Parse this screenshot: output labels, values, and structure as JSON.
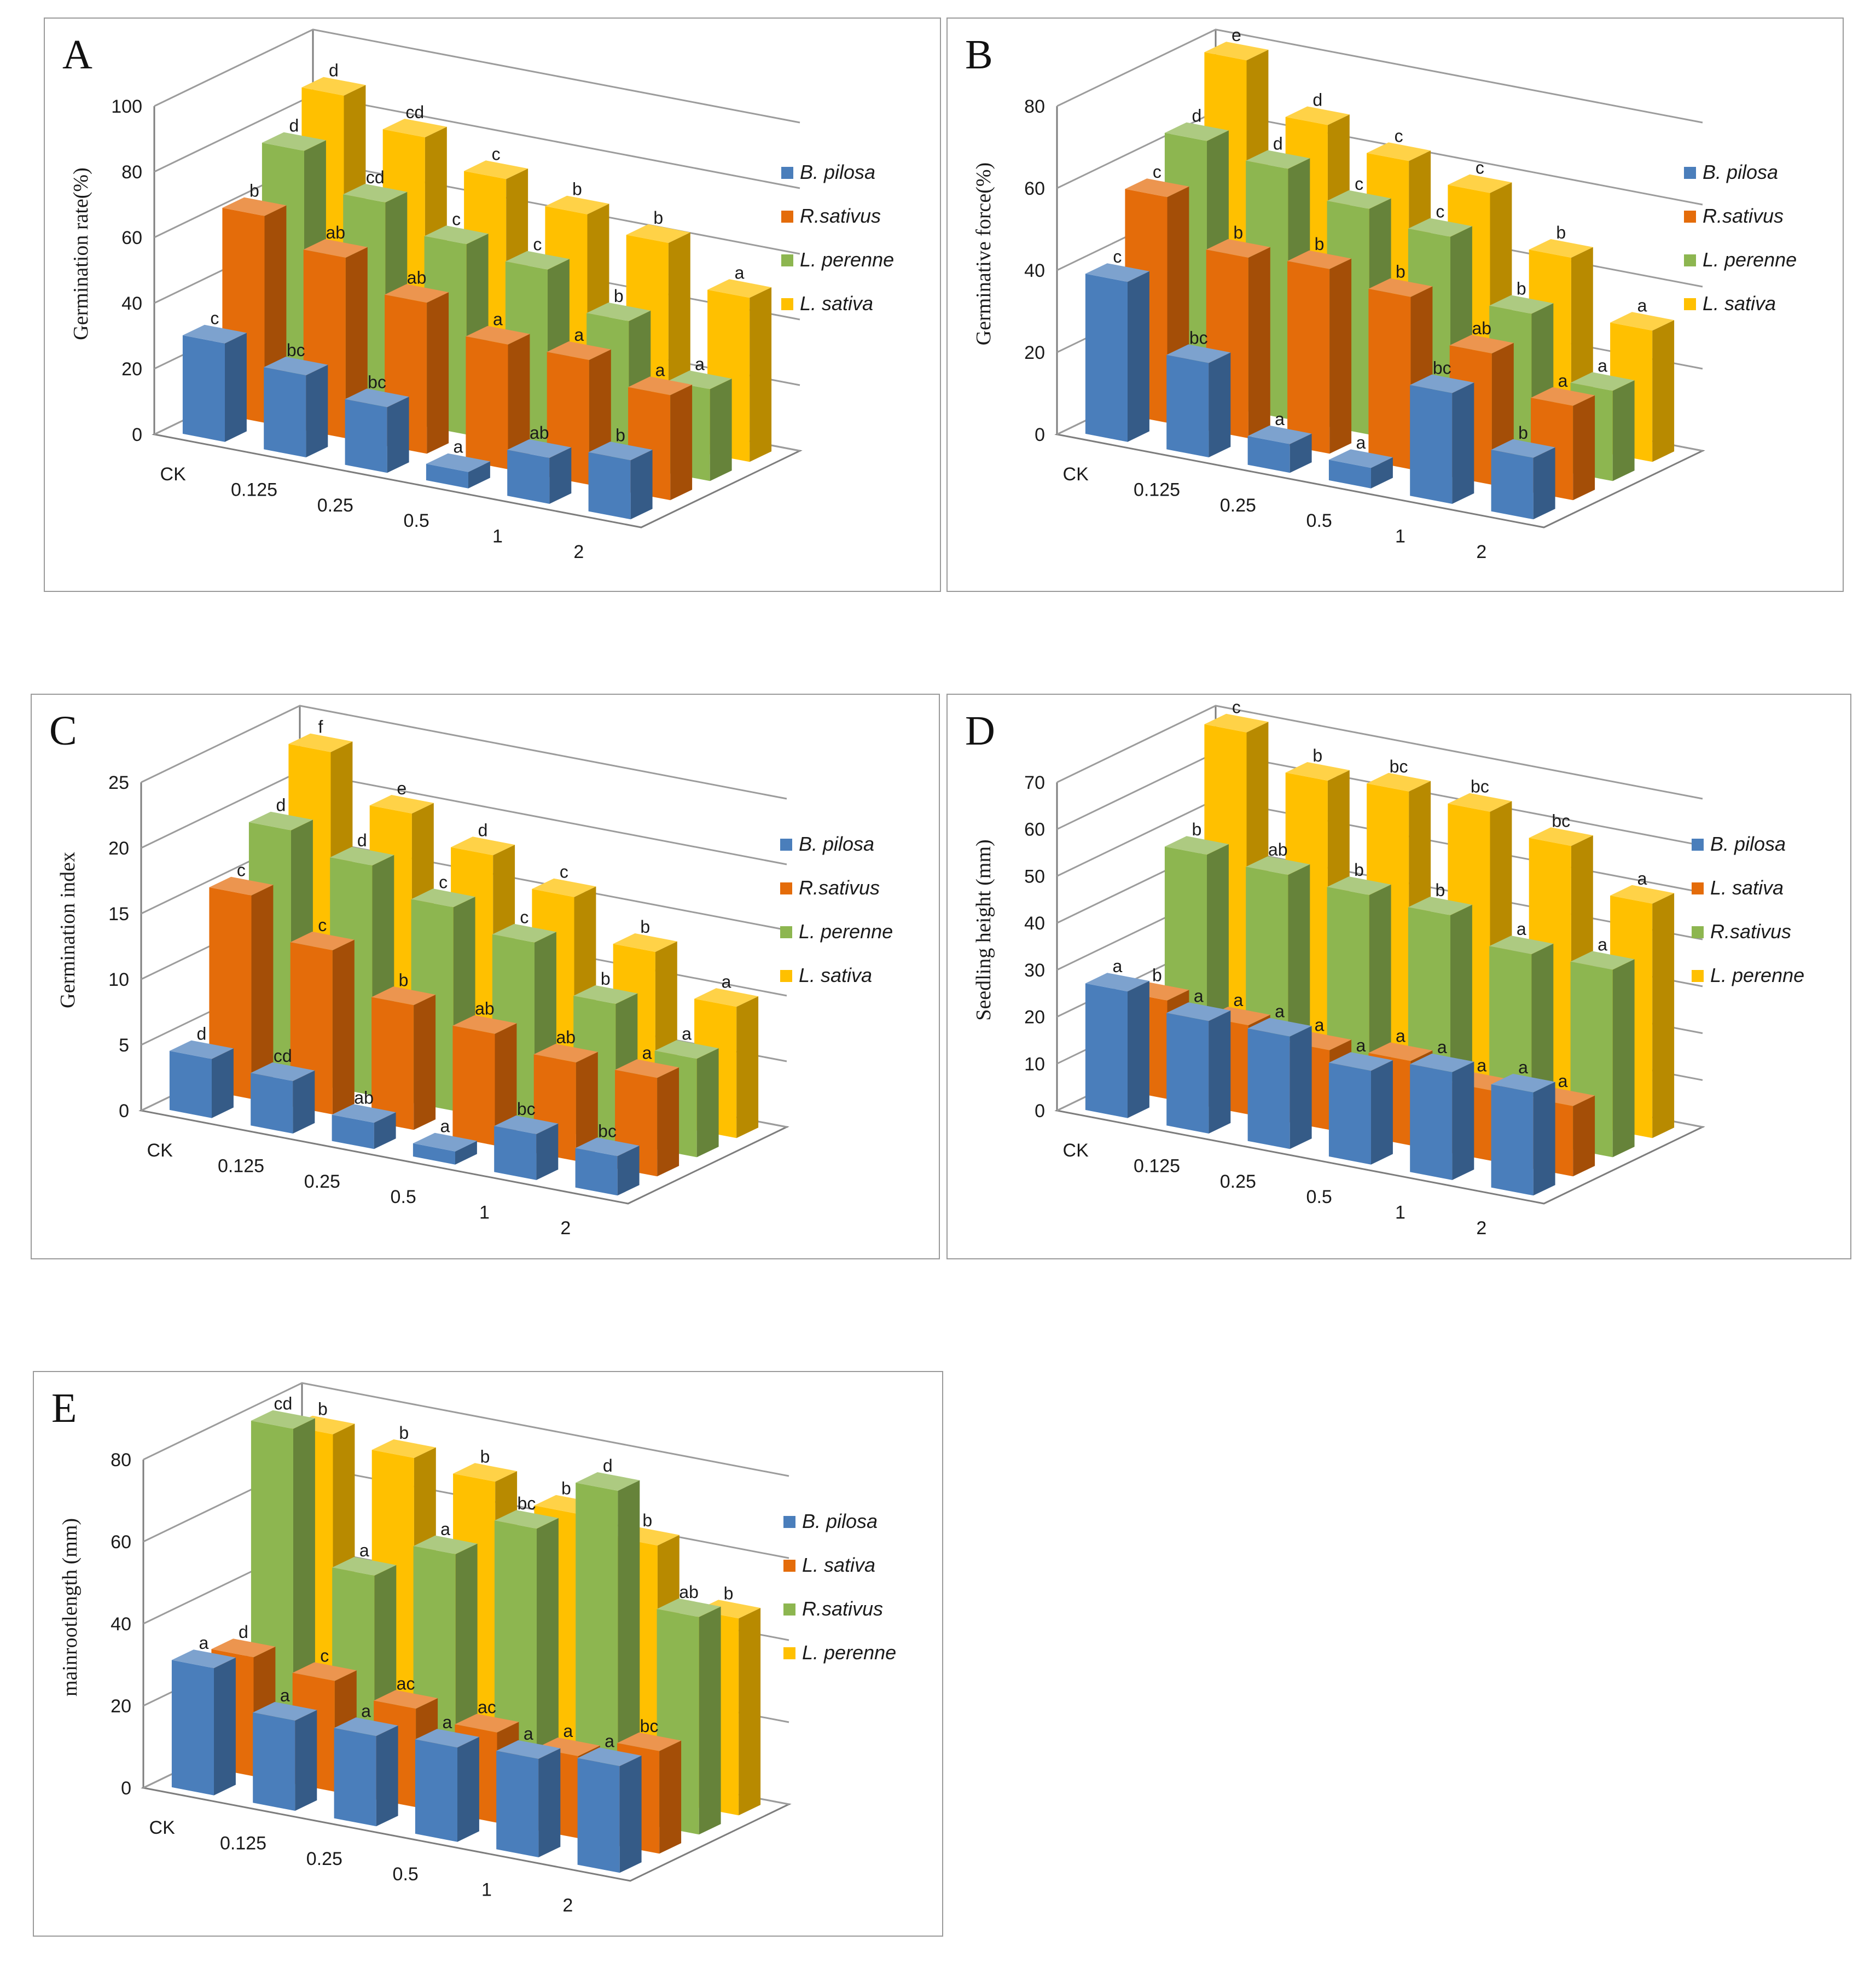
{
  "categories": [
    "CK",
    "0.125",
    "0.25",
    "0.5",
    "1",
    "2"
  ],
  "colors": {
    "blue": "#4a7ebb",
    "orange": "#e46c0a",
    "green": "#8db650",
    "yellow": "#ffc000"
  },
  "chart_data": [
    {
      "panel": "A",
      "type": "bar",
      "title": "",
      "ylabel": "Germination rate(%)",
      "xlabel": "",
      "ylim": [
        0,
        100
      ],
      "yticks": [
        "0",
        "20",
        "40",
        "60",
        "80",
        "100"
      ],
      "categories": [
        "CK",
        "0.125",
        "0.25",
        "0.5",
        "1",
        "2"
      ],
      "series": [
        {
          "name": "B. pilosa",
          "color": "blue",
          "values": [
            30,
            25,
            20,
            5,
            14,
            18
          ],
          "letters": [
            "c",
            "bc",
            "bc",
            "a",
            "ab",
            "b"
          ]
        },
        {
          "name": "R.sativus",
          "color": "orange",
          "values": [
            63,
            55,
            46,
            38,
            38,
            32
          ],
          "letters": [
            "b",
            "ab",
            "ab",
            "a",
            "a",
            "a"
          ]
        },
        {
          "name": "L. perenne",
          "color": "green",
          "values": [
            77,
            66,
            58,
            55,
            44,
            28
          ],
          "letters": [
            "d",
            "cd",
            "c",
            "c",
            "b",
            "a"
          ]
        },
        {
          "name": "L. sativa",
          "color": "yellow",
          "values": [
            88,
            80,
            72,
            66,
            62,
            50
          ],
          "letters": [
            "d",
            "cd",
            "c",
            "b",
            "b",
            "a"
          ]
        }
      ]
    },
    {
      "panel": "B",
      "type": "bar",
      "title": "",
      "ylabel": "Germinative force(%)",
      "xlabel": "",
      "ylim": [
        0,
        80
      ],
      "yticks": [
        "0",
        "20",
        "40",
        "60",
        "80"
      ],
      "categories": [
        "CK",
        "0.125",
        "0.25",
        "0.5",
        "1",
        "2"
      ],
      "series": [
        {
          "name": "B. pilosa",
          "color": "blue",
          "values": [
            39,
            23,
            7,
            5,
            27,
            15
          ],
          "letters": [
            "c",
            "bc",
            "a",
            "a",
            "bc",
            "b"
          ]
        },
        {
          "name": "R.sativus",
          "color": "orange",
          "values": [
            55,
            44,
            45,
            42,
            32,
            23
          ],
          "letters": [
            "c",
            "b",
            "b",
            "b",
            "ab",
            "a"
          ]
        },
        {
          "name": "L. perenne",
          "color": "green",
          "values": [
            64,
            61,
            55,
            52,
            37,
            22
          ],
          "letters": [
            "d",
            "d",
            "c",
            "c",
            "b",
            "a"
          ]
        },
        {
          "name": "L. sativa",
          "color": "yellow",
          "values": [
            79,
            67,
            62,
            58,
            46,
            32
          ],
          "letters": [
            "e",
            "d",
            "c",
            "c",
            "b",
            "a"
          ]
        }
      ]
    },
    {
      "panel": "C",
      "type": "bar",
      "title": "",
      "ylabel": "Germination  index",
      "xlabel": "",
      "ylim": [
        0,
        25
      ],
      "yticks": [
        "0",
        "5",
        "10",
        "15",
        "20",
        "25"
      ],
      "categories": [
        "CK",
        "0.125",
        "0.25",
        "0.5",
        "1",
        "2"
      ],
      "series": [
        {
          "name": "B. pilosa",
          "color": "blue",
          "values": [
            4.5,
            4,
            2,
            1,
            3.5,
            3
          ],
          "letters": [
            "d",
            "cd",
            "ab",
            "a",
            "bc",
            "bc"
          ]
        },
        {
          "name": "R.sativus",
          "color": "orange",
          "values": [
            15.5,
            12.5,
            9.5,
            8.5,
            7.5,
            7.5
          ],
          "letters": [
            "c",
            "c",
            "b",
            "ab",
            "ab",
            "a"
          ]
        },
        {
          "name": "L. perenne",
          "color": "green",
          "values": [
            19,
            17.5,
            15.5,
            14,
            10.5,
            7.5
          ],
          "letters": [
            "d",
            "d",
            "c",
            "c",
            "b",
            "a"
          ]
        },
        {
          "name": "L. sativa",
          "color": "yellow",
          "values": [
            23.5,
            20,
            18,
            16,
            13,
            10
          ],
          "letters": [
            "f",
            "e",
            "d",
            "c",
            "b",
            "a"
          ]
        }
      ]
    },
    {
      "panel": "D",
      "type": "bar",
      "title": "",
      "ylabel": "Seedling height (mm)",
      "xlabel": "",
      "ylim": [
        0,
        70
      ],
      "yticks": [
        "0",
        "10",
        "20",
        "30",
        "40",
        "50",
        "60",
        "70"
      ],
      "categories": [
        "CK",
        "0.125",
        "0.25",
        "0.5",
        "1",
        "2"
      ],
      "series": [
        {
          "name": "B. pilosa",
          "color": "blue",
          "values": [
            27,
            24,
            24,
            20,
            23,
            22
          ],
          "letters": [
            "a",
            "a",
            "a",
            "a",
            "a",
            "a"
          ]
        },
        {
          "name": "L. sativa",
          "color": "orange",
          "values": [
            21,
            19,
            17,
            18,
            15,
            15
          ],
          "letters": [
            "b",
            "a",
            "a",
            "a",
            "a",
            "a"
          ]
        },
        {
          "name": "R.sativus",
          "color": "green",
          "values": [
            48,
            47,
            46,
            45,
            40,
            40
          ],
          "letters": [
            "b",
            "ab",
            "b",
            "b",
            "a",
            "a"
          ]
        },
        {
          "name": "L. perenne",
          "color": "yellow",
          "values": [
            70,
            63,
            64,
            63,
            59,
            50
          ],
          "letters": [
            "c",
            "b",
            "bc",
            "bc",
            "bc",
            "a"
          ]
        }
      ]
    },
    {
      "panel": "E",
      "type": "bar",
      "title": "",
      "ylabel": "mainrootlength (mm)",
      "xlabel": "",
      "ylim": [
        0,
        80
      ],
      "yticks": [
        "0",
        "20",
        "40",
        "60",
        "80"
      ],
      "categories": [
        "CK",
        "0.125",
        "0.25",
        "0.5",
        "1",
        "2"
      ],
      "series": [
        {
          "name": "B. pilosa",
          "color": "blue",
          "values": [
            31,
            22,
            22,
            23,
            24,
            26
          ],
          "letters": [
            "a",
            "a",
            "a",
            "a",
            "a",
            "a"
          ]
        },
        {
          "name": "L. sativa",
          "color": "orange",
          "values": [
            29,
            27,
            24,
            22,
            20,
            25
          ],
          "letters": [
            "d",
            "c",
            "ac",
            "ac",
            "a",
            "bc"
          ]
        },
        {
          "name": "R.sativus",
          "color": "green",
          "values": [
            80,
            48,
            57,
            67,
            80,
            53
          ],
          "letters": [
            "cd",
            "a",
            "a",
            "bc",
            "d",
            "ab"
          ]
        },
        {
          "name": "L. perenne",
          "color": "yellow",
          "values": [
            74,
            72,
            70,
            66,
            62,
            48
          ],
          "letters": [
            "b",
            "b",
            "b",
            "b",
            "b",
            "b"
          ]
        }
      ]
    }
  ]
}
